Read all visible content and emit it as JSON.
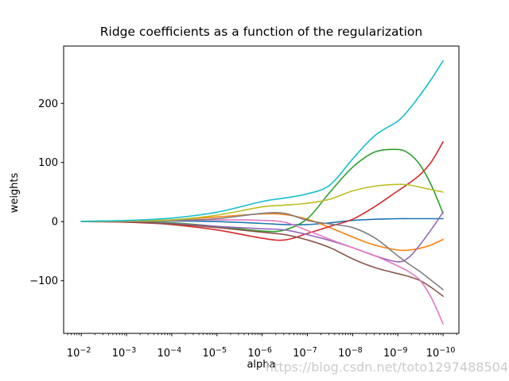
{
  "figure": {
    "title": "Ridge coefficients as a function of the regularization",
    "xlabel": "alpha",
    "ylabel": "weights",
    "watermark": "https://blog.csdn.net/toto1297488504",
    "background": "#ffffff",
    "watermark_color": "#cbcbcb"
  },
  "chart_data": {
    "type": "line",
    "title": "Ridge coefficients as a function of the regularization",
    "xlabel": "alpha",
    "ylabel": "weights",
    "x_scale": "log",
    "x_axis_inverted": true,
    "grid": false,
    "legend": "none",
    "xlim_exponents": [
      -1.61,
      -10.35
    ],
    "ylim": [
      -189,
      297
    ],
    "x_major_ticks": [
      {
        "exponent": -2,
        "base": "10",
        "sup": "−2"
      },
      {
        "exponent": -3,
        "base": "10",
        "sup": "−3"
      },
      {
        "exponent": -4,
        "base": "10",
        "sup": "−4"
      },
      {
        "exponent": -5,
        "base": "10",
        "sup": "−5"
      },
      {
        "exponent": -6,
        "base": "10",
        "sup": "−6"
      },
      {
        "exponent": -7,
        "base": "10",
        "sup": "−7"
      },
      {
        "exponent": -8,
        "base": "10",
        "sup": "−8"
      },
      {
        "exponent": -9,
        "base": "10",
        "sup": "−9"
      },
      {
        "exponent": -10,
        "base": "10",
        "sup": "−10"
      }
    ],
    "y_ticks": [
      {
        "value": -100,
        "label": "−100"
      },
      {
        "value": 0,
        "label": "0"
      },
      {
        "value": 100,
        "label": "100"
      },
      {
        "value": 200,
        "label": "200"
      }
    ],
    "x_exponents": [
      -2,
      -3,
      -4,
      -5,
      -6,
      -6.5,
      -7,
      -7.5,
      -8,
      -8.5,
      -9,
      -9.25,
      -9.5,
      -9.75,
      -10
    ],
    "series": [
      {
        "name": "blue",
        "color": "#1f77b4",
        "values": [
          0.5,
          1,
          1,
          0,
          -3,
          -5,
          -5,
          -2,
          2,
          4,
          5,
          5,
          5,
          5,
          5
        ]
      },
      {
        "name": "orange",
        "color": "#ff7f0e",
        "values": [
          0.3,
          1,
          3,
          8,
          13,
          12,
          4,
          -10,
          -26,
          -40,
          -48,
          -48,
          -45,
          -39,
          -30
        ]
      },
      {
        "name": "green",
        "color": "#2ca02c",
        "values": [
          0.3,
          0.5,
          -2,
          -8,
          -16,
          -14,
          5,
          50,
          92,
          118,
          122,
          115,
          95,
          60,
          14
        ]
      },
      {
        "name": "red",
        "color": "#d62728",
        "values": [
          0.2,
          -1,
          -5,
          -14,
          -28,
          -31,
          -20,
          -8,
          4,
          26,
          52,
          65,
          80,
          102,
          135
        ]
      },
      {
        "name": "purple",
        "color": "#9467bd",
        "values": [
          0.2,
          -0.5,
          -3,
          -8,
          -12,
          -14,
          -22,
          -32,
          -44,
          -58,
          -68,
          -60,
          -38,
          -12,
          16
        ]
      },
      {
        "name": "brown",
        "color": "#8c564b",
        "values": [
          0.2,
          -0.7,
          -4,
          -10,
          -18,
          -22,
          -31,
          -44,
          -63,
          -78,
          -88,
          -93,
          -100,
          -112,
          -126
        ]
      },
      {
        "name": "pink",
        "color": "#e377c2",
        "values": [
          0.3,
          0.8,
          1.5,
          3,
          2,
          -1,
          -15,
          -30,
          -44,
          -58,
          -75,
          -85,
          -100,
          -130,
          -173
        ]
      },
      {
        "name": "gray",
        "color": "#7f7f7f",
        "values": [
          0.3,
          1,
          2,
          5,
          14,
          14,
          2,
          -4,
          -10,
          -28,
          -58,
          -72,
          -85,
          -100,
          -115
        ]
      },
      {
        "name": "olive",
        "color": "#bcbd22",
        "values": [
          0.3,
          1,
          3,
          11,
          25,
          28,
          31,
          38,
          52,
          60,
          63,
          62,
          58,
          54,
          50
        ]
      },
      {
        "name": "cyan",
        "color": "#17becf",
        "values": [
          0.4,
          2,
          6,
          16,
          34,
          40,
          47,
          62,
          106,
          146,
          170,
          190,
          215,
          242,
          272
        ]
      }
    ]
  }
}
